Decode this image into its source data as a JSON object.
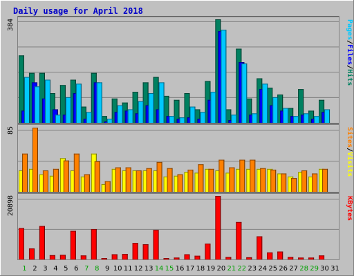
{
  "chart_data": {
    "type": "bar",
    "title": "Daily usage for April 2018",
    "categories": [
      "1",
      "2",
      "3",
      "4",
      "5",
      "6",
      "7",
      "8",
      "9",
      "10",
      "11",
      "12",
      "13",
      "14",
      "15",
      "16",
      "17",
      "18",
      "19",
      "20",
      "21",
      "22",
      "23",
      "24",
      "25",
      "26",
      "27",
      "28",
      "29",
      "30",
      "31"
    ],
    "weekend_days": [
      "1",
      "7",
      "8",
      "14",
      "15",
      "21",
      "22",
      "28",
      "29"
    ],
    "panels": [
      {
        "name": "top",
        "ymax": 384,
        "ymax_label": "384",
        "series": [
          {
            "name": "Hits",
            "color": "#008060",
            "values": [
              250,
              185,
              185,
              110,
              140,
              160,
              60,
              185,
              25,
              90,
              75,
              115,
              150,
              170,
              100,
              85,
              110,
              50,
              155,
              384,
              50,
              275,
              90,
              165,
              130,
              105,
              55,
              125,
              45,
              85,
              0
            ]
          },
          {
            "name": "Files",
            "color": "#0000ff",
            "values": [
              45,
              150,
              90,
              50,
              30,
              110,
              15,
              150,
              5,
              40,
              45,
              35,
              65,
              50,
              25,
              15,
              20,
              15,
              85,
              340,
              10,
              225,
              30,
              125,
              65,
              45,
              25,
              30,
              15,
              40,
              0
            ]
          },
          {
            "name": "Pages",
            "color": "#00c8ff",
            "values": [
              170,
              135,
              160,
              30,
              95,
              145,
              40,
              150,
              15,
              65,
              50,
              80,
              110,
              150,
              25,
              20,
              60,
              40,
              115,
              345,
              30,
              220,
              35,
              145,
              95,
              55,
              25,
              35,
              25,
              50,
              0
            ]
          }
        ]
      },
      {
        "name": "mid",
        "ymax": 85,
        "ymax_label": "85",
        "series": [
          {
            "name": "Visits",
            "color": "#ffff00",
            "values": [
              28,
              30,
              23,
              21,
              44,
              28,
              20,
              50,
              10,
              30,
              28,
              28,
              28,
              28,
              20,
              21,
              26,
              25,
              30,
              28,
              25,
              30,
              30,
              30,
              30,
              24,
              20,
              26,
              20,
              30,
              0
            ]
          },
          {
            "name": "Sites",
            "color": "#ff8000",
            "values": [
              50,
              84,
              28,
              30,
              41,
              50,
              23,
              40,
              14,
              32,
              32,
              28,
              31,
              39,
              31,
              23,
              29,
              36,
              30,
              42,
              32,
              42,
              42,
              31,
              29,
              24,
              18,
              28,
              24,
              30,
              0
            ]
          }
        ]
      },
      {
        "name": "bottom",
        "ymax": 20898,
        "ymax_label": "20898",
        "series": [
          {
            "name": "KBytes",
            "color": "#ff0000",
            "values": [
              10300,
              3600,
              11000,
              1400,
              1500,
              9400,
              1300,
              10000,
              150,
              1700,
              1800,
              5400,
              5000,
              9700,
              300,
              600,
              1700,
              1200,
              5200,
              20898,
              800,
              12300,
              700,
              7600,
              2300,
              2600,
              800,
              600,
              600,
              1300,
              0
            ]
          }
        ]
      }
    ],
    "legend_right": {
      "top": [
        "Pages",
        "/",
        "Files",
        "/",
        "Hits"
      ],
      "mid": [
        "Sites",
        "/",
        "Visits"
      ],
      "bottom": [
        "KBytes"
      ]
    },
    "colors": {
      "background": "#c0c0c0",
      "day_weekday": "#000000",
      "day_weekend": "#00a000",
      "legend_pages": "#00c8ff",
      "legend_files": "#0000ff",
      "legend_hits": "#008060",
      "legend_sites": "#ff8000",
      "legend_visits": "#ffff00",
      "legend_kbytes": "#ff0000",
      "slash": "#000000"
    }
  }
}
